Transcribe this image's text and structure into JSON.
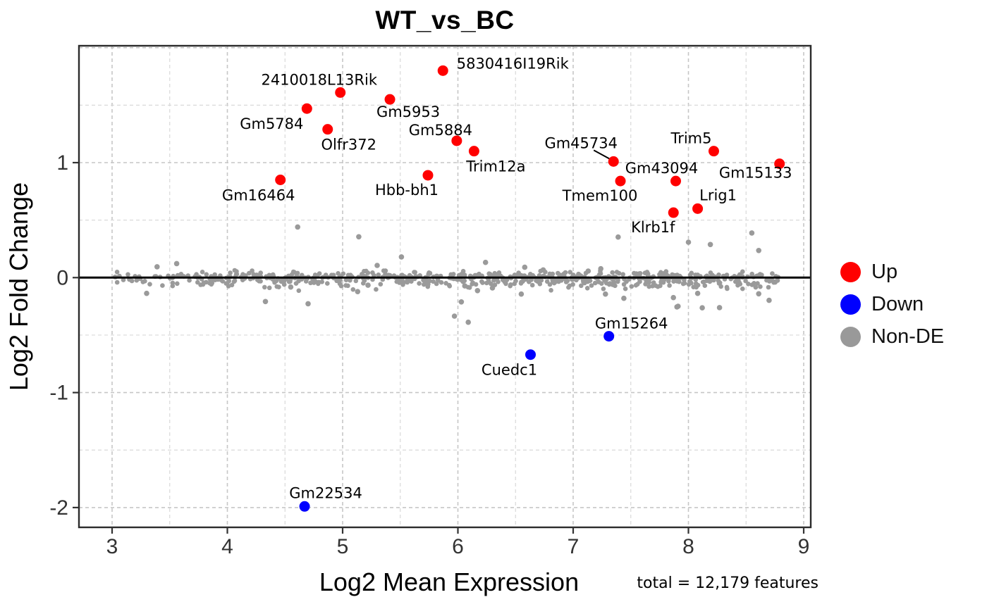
{
  "title": "WT_vs_BC",
  "annotation": "total = 12,179 features",
  "legend": [
    {
      "label": "Up",
      "color": "#ff0000"
    },
    {
      "label": "Down",
      "color": "#0000ff"
    },
    {
      "label": "Non-DE",
      "color": "#999999"
    }
  ],
  "chart_data": {
    "type": "scatter",
    "title": "WT_vs_BC",
    "xlabel": "Log2 Mean Expression",
    "ylabel": "Log2 Fold Change",
    "xlim": [
      2.71,
      9.06
    ],
    "ylim": [
      -2.17,
      2.02
    ],
    "x_ticks": [
      3,
      4,
      5,
      6,
      7,
      8,
      9
    ],
    "x_tick_labels": [
      "3",
      "4",
      "5",
      "6",
      "7",
      "8",
      "9"
    ],
    "y_ticks": [
      1,
      0,
      -1,
      -2
    ],
    "y_tick_labels": [
      "1",
      "0",
      "-1",
      "-2"
    ],
    "grid_step": 0.5,
    "grid_style": "dashed",
    "zero_line_y": 0,
    "legend_position": "right",
    "total_features": 12179,
    "colors": {
      "up": "#ff0000",
      "down": "#0000ff",
      "nonde": "#9a9a9a",
      "grid_major": "#c6c6c6",
      "grid_minor": "#d9d9d9",
      "panel_border": "#2b2b2b",
      "zero_line": "#000000",
      "tick": "#333333"
    },
    "series": [
      {
        "name": "Up",
        "color": "#ff0000",
        "points": [
          {
            "gene": "Gm16464",
            "x": 4.46,
            "y": 0.85,
            "label_dx": -31,
            "label_dy": 29
          },
          {
            "gene": "Gm5784",
            "x": 4.69,
            "y": 1.47,
            "label_dx": -50,
            "label_dy": 29
          },
          {
            "gene": "Olfr372",
            "x": 4.87,
            "y": 1.29,
            "label_dx": 30,
            "label_dy": 29
          },
          {
            "gene": "2410018L13Rik",
            "x": 4.98,
            "y": 1.61,
            "label_dx": -30,
            "label_dy": -11
          },
          {
            "gene": "Gm5953",
            "x": 5.41,
            "y": 1.55,
            "label_dx": 26,
            "label_dy": 25
          },
          {
            "gene": "Hbb-bh1",
            "x": 5.74,
            "y": 0.89,
            "label_dx": -30,
            "label_dy": 28
          },
          {
            "gene": "5830416I19Rik",
            "x": 5.87,
            "y": 1.8,
            "label_dx": 99,
            "label_dy": -3
          },
          {
            "gene": "Gm5884",
            "x": 5.99,
            "y": 1.19,
            "label_dx": -23,
            "label_dy": -8
          },
          {
            "gene": "Trim12a",
            "x": 6.14,
            "y": 1.1,
            "label_dx": 31,
            "label_dy": 29
          },
          {
            "gene": "Gm45734",
            "x": 7.35,
            "y": 1.01,
            "label_dx": -46,
            "label_dy": -19,
            "leader": [
              [
                -28,
                -16
              ],
              [
                -6,
                -4
              ]
            ]
          },
          {
            "gene": "Tmem100",
            "x": 7.41,
            "y": 0.84,
            "label_dx": -29,
            "label_dy": 28
          },
          {
            "gene": "Klrb1f",
            "x": 7.87,
            "y": 0.565,
            "label_dx": -29,
            "label_dy": 28
          },
          {
            "gene": "Gm43094",
            "x": 7.89,
            "y": 0.84,
            "label_dx": -20,
            "label_dy": -11
          },
          {
            "gene": "Lrig1",
            "x": 8.08,
            "y": 0.6,
            "label_dx": 29,
            "label_dy": -12
          },
          {
            "gene": "Trim5",
            "x": 8.22,
            "y": 1.1,
            "label_dx": -32,
            "label_dy": -11
          },
          {
            "gene": "Gm15133",
            "x": 8.79,
            "y": 0.99,
            "label_dx": -34,
            "label_dy": 20
          }
        ]
      },
      {
        "name": "Down",
        "color": "#0000ff",
        "points": [
          {
            "gene": "Gm22534",
            "x": 4.67,
            "y": -1.99,
            "label_dx": 30,
            "label_dy": -12
          },
          {
            "gene": "Cuedc1",
            "x": 6.63,
            "y": -0.67,
            "label_dx": -30,
            "label_dy": 29
          },
          {
            "gene": "Gm15264",
            "x": 7.31,
            "y": -0.51,
            "label_dx": 32,
            "label_dy": -11
          }
        ]
      },
      {
        "name": "Non-DE",
        "color": "#9a9a9a",
        "outlier_points": [
          [
            3.3,
            -0.137
          ],
          [
            3.39,
            0.094
          ],
          [
            3.56,
            0.122
          ],
          [
            4.33,
            -0.208
          ],
          [
            4.55,
            -0.082
          ],
          [
            4.61,
            0.44
          ],
          [
            4.7,
            -0.227
          ],
          [
            5.13,
            -0.122
          ],
          [
            5.14,
            0.355
          ],
          [
            5.22,
            -0.066
          ],
          [
            5.3,
            0.106
          ],
          [
            5.51,
            0.18
          ],
          [
            5.97,
            -0.335
          ],
          [
            6.03,
            -0.211
          ],
          [
            6.06,
            -0.072
          ],
          [
            6.09,
            -0.388
          ],
          [
            6.17,
            -0.113
          ],
          [
            6.24,
            0.132
          ],
          [
            6.3,
            -0.09
          ],
          [
            6.55,
            -0.143
          ],
          [
            6.58,
            0.09
          ],
          [
            6.74,
            0.067
          ],
          [
            7.13,
            0.057
          ],
          [
            7.24,
            0.077
          ],
          [
            7.28,
            -0.143
          ],
          [
            7.39,
            0.353
          ],
          [
            7.44,
            -0.18
          ],
          [
            7.87,
            -0.174
          ],
          [
            7.9,
            -0.255
          ],
          [
            7.91,
            -0.249
          ],
          [
            8.0,
            0.308
          ],
          [
            8.08,
            -0.137
          ],
          [
            8.12,
            -0.263
          ],
          [
            8.19,
            0.288
          ],
          [
            8.27,
            -0.261
          ],
          [
            8.55,
            0.388
          ],
          [
            8.61,
            -0.141
          ],
          [
            8.61,
            0.236
          ],
          [
            8.7,
            -0.198
          ]
        ],
        "band": {
          "count": 660,
          "x_min": 3.0,
          "x_max": 8.78,
          "x_power": 0.72,
          "y_sd_below": 0.042,
          "y_sd_above": 0.026,
          "y_shift": -0.004,
          "y_min": -0.125,
          "y_max": 0.08,
          "seed": 7
        }
      }
    ]
  }
}
